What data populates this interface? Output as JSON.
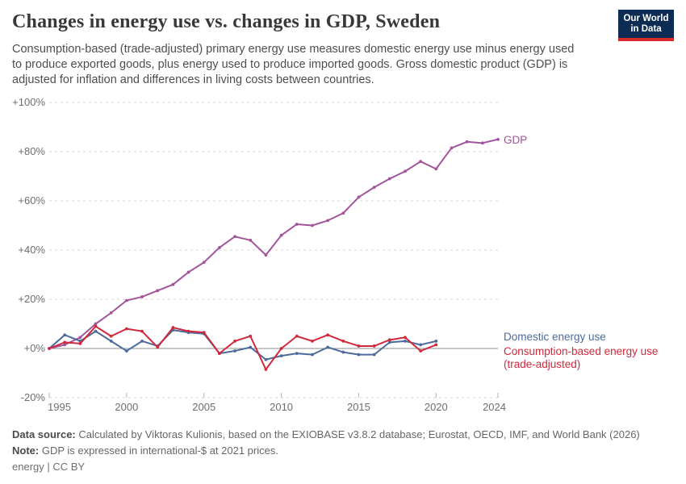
{
  "header": {
    "title": "Changes in energy use vs. changes in GDP, Sweden",
    "subtitle": "Consumption-based (trade-adjusted) primary energy use measures domestic energy use minus energy used to produce exported goods, plus energy used to produce imported goods. Gross domestic product (GDP) is adjusted for inflation and differences in living costs between countries.",
    "logo": {
      "line1": "Our World",
      "line2": "in Data",
      "bg": "#0d2c54",
      "underline": "#d92a28"
    }
  },
  "chart_data": {
    "type": "line",
    "title": "Changes in energy use vs. changes in GDP, Sweden",
    "xlabel": "",
    "ylabel": "",
    "xlim": [
      1995,
      2024
    ],
    "ylim": [
      -20,
      100
    ],
    "grid": "horizontal-dashed",
    "legend_position": "right-of-line-ends",
    "yticks": [
      {
        "value": 100,
        "label": "+100%"
      },
      {
        "value": 80,
        "label": "+80%"
      },
      {
        "value": 60,
        "label": "+60%"
      },
      {
        "value": 40,
        "label": "+40%"
      },
      {
        "value": 20,
        "label": "+20%"
      },
      {
        "value": 0,
        "label": "+0%"
      },
      {
        "value": -20,
        "label": "-20%"
      }
    ],
    "xticks": [
      {
        "value": 1995,
        "label": "1995"
      },
      {
        "value": 2000,
        "label": "2000"
      },
      {
        "value": 2005,
        "label": "2005"
      },
      {
        "value": 2010,
        "label": "2010"
      },
      {
        "value": 2015,
        "label": "2015"
      },
      {
        "value": 2020,
        "label": "2020"
      },
      {
        "value": 2024,
        "label": "2024"
      }
    ],
    "series": [
      {
        "name": "GDP",
        "color": "#A2559C",
        "x_start": 1995,
        "values": [
          0,
          1.5,
          4.5,
          10,
          14.5,
          19.5,
          21,
          23.5,
          26,
          31,
          35,
          41,
          45.5,
          44,
          38,
          46,
          50.5,
          50,
          52,
          55,
          61.5,
          65.5,
          69,
          72,
          76,
          73,
          81.5,
          84,
          83.5,
          85
        ]
      },
      {
        "name": "Domestic energy use",
        "color": "#4C6A9C",
        "x_start": 1995,
        "values": [
          0,
          5.5,
          3,
          7,
          3,
          -1,
          3,
          1,
          7.5,
          6.5,
          6,
          -2,
          -1,
          0.5,
          -4.5,
          -3,
          -2,
          -2.5,
          0.5,
          -1.5,
          -2.5,
          -2.5,
          2.5,
          3,
          1.5,
          3
        ]
      },
      {
        "name": "Consumption-based energy use (trade-adjusted)",
        "color": "#D0293B",
        "x_start": 1995,
        "values": [
          0,
          2.5,
          2,
          9,
          5,
          8,
          7,
          0.5,
          8.5,
          7,
          6.5,
          -2,
          3,
          5,
          -8.5,
          0,
          5,
          3,
          5.5,
          3,
          1,
          1,
          3.5,
          4.5,
          -1,
          1.5
        ]
      }
    ]
  },
  "legend": {
    "gdp_label": "GDP",
    "domestic_label": "Domestic energy use",
    "consumption_label_line1": "Consumption-based energy use",
    "consumption_label_line2": "(trade-adjusted)"
  },
  "footer": {
    "source_prefix": "Data source:",
    "source_text": " Calculated by Viktoras Kulionis, based on the EXIOBASE v3.8.2 database; Eurostat, OECD, IMF, and World Bank (2026)",
    "note_prefix": "Note:",
    "note_text": " GDP is expressed in international-$ at 2021 prices.",
    "license": "energy | CC BY"
  }
}
